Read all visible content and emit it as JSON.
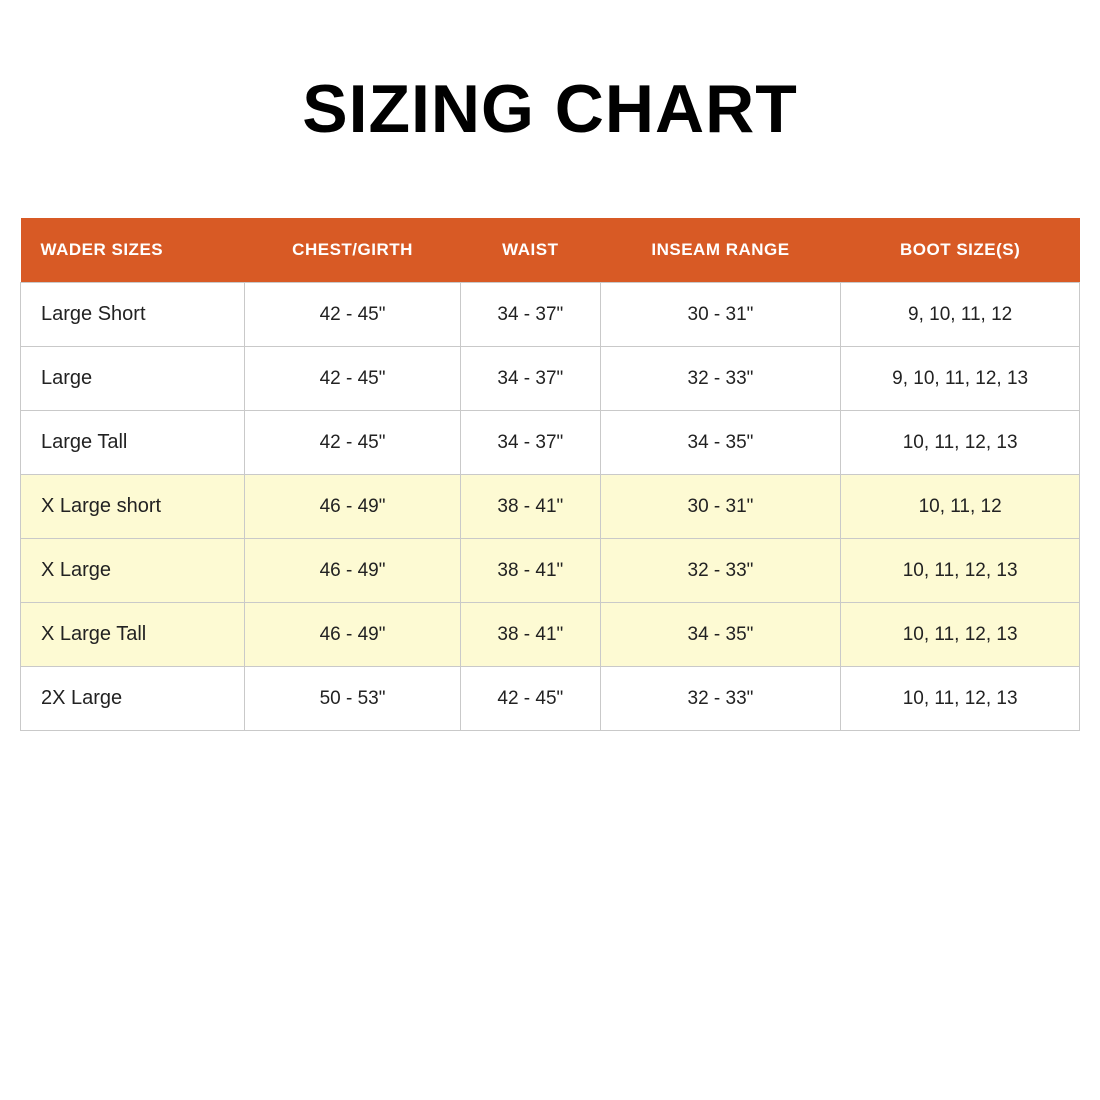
{
  "title": "SIZING CHART",
  "table": {
    "type": "table",
    "header_bg": "#d85a25",
    "header_fg": "#ffffff",
    "row_bg": "#ffffff",
    "highlight_bg": "#fdfad3",
    "border_color": "#c9c9c9",
    "title_fontsize": 68,
    "header_fontsize": 17,
    "cell_fontsize": 19,
    "columns": [
      "WADER SIZES",
      "CHEST/GIRTH",
      "WAIST",
      "INSEAM RANGE",
      "BOOT SIZE(S)"
    ],
    "col_align": [
      "left",
      "center",
      "center",
      "center",
      "center"
    ],
    "rows": [
      {
        "highlight": false,
        "cells": [
          "Large Short",
          "42 - 45\"",
          "34 - 37\"",
          "30 - 31\"",
          "9, 10, 11, 12"
        ]
      },
      {
        "highlight": false,
        "cells": [
          "Large",
          "42 - 45\"",
          "34 - 37\"",
          "32 - 33\"",
          "9, 10, 11, 12, 13"
        ]
      },
      {
        "highlight": false,
        "cells": [
          "Large Tall",
          "42 - 45\"",
          "34 - 37\"",
          "34 - 35\"",
          "10, 11, 12, 13"
        ]
      },
      {
        "highlight": true,
        "cells": [
          "X Large short",
          "46 - 49\"",
          "38 - 41\"",
          "30 - 31\"",
          "10, 11, 12"
        ]
      },
      {
        "highlight": true,
        "cells": [
          "X Large",
          "46 - 49\"",
          "38 - 41\"",
          "32 - 33\"",
          "10, 11, 12, 13"
        ]
      },
      {
        "highlight": true,
        "cells": [
          "X Large Tall",
          "46 - 49\"",
          "38 - 41\"",
          "34 - 35\"",
          "10, 11, 12, 13"
        ]
      },
      {
        "highlight": false,
        "cells": [
          "2X Large",
          "50 - 53\"",
          "42 - 45\"",
          "32 - 33\"",
          "10, 11, 12, 13"
        ]
      }
    ]
  }
}
